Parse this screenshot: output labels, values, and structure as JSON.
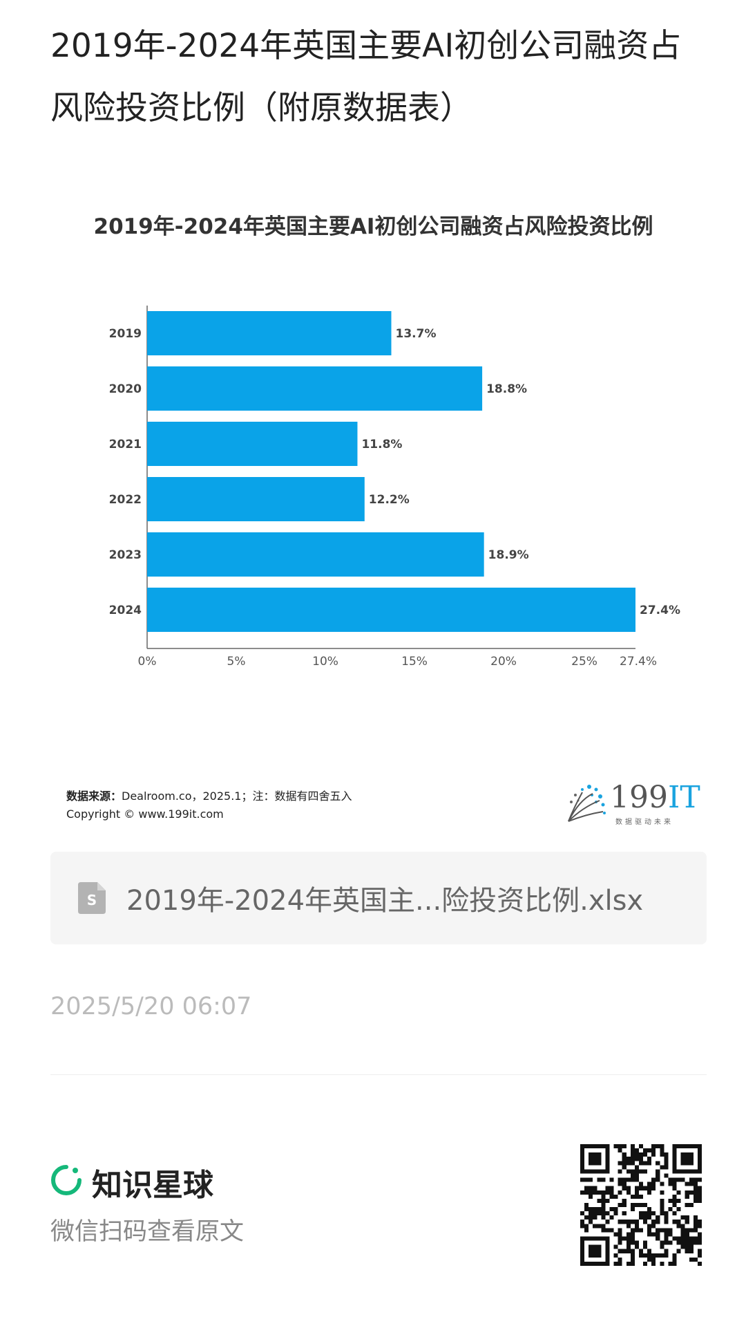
{
  "page": {
    "title": "2019年-2024年英国主要AI初创公司融资占风险投资比例（附原数据表）"
  },
  "chart_data": {
    "type": "bar",
    "orientation": "horizontal",
    "title": "2019年-2024年英国主要AI初创公司融资占风险投资比例",
    "categories": [
      "2019",
      "2020",
      "2021",
      "2022",
      "2023",
      "2024"
    ],
    "values": [
      13.7,
      18.8,
      11.8,
      12.2,
      18.9,
      27.4
    ],
    "value_labels": [
      "13.7%",
      "18.8%",
      "11.8%",
      "12.2%",
      "18.9%",
      "27.4%"
    ],
    "x_ticks": [
      "0%",
      "5%",
      "10%",
      "15%",
      "20%",
      "25%",
      "27.4%"
    ],
    "x_tick_values": [
      0,
      5,
      10,
      15,
      20,
      25,
      27.4
    ],
    "xlim": [
      0,
      27.4
    ],
    "xlabel": "",
    "ylabel": "",
    "bar_color": "#0aa3e8",
    "grid": false
  },
  "source": {
    "label": "数据来源：",
    "text": "Dealroom.co，2025.1；注：数据有四舍五入",
    "copyright": "Copyright © www.199it.com"
  },
  "logo": {
    "number": "199",
    "letters": "IT",
    "tagline": "数据驱动未来"
  },
  "attachment": {
    "icon": "spreadsheet-file-icon",
    "file_name": "2019年-2024年英国主...险投资比例.xlsx"
  },
  "timestamp": "2025/5/20 06:07",
  "footer": {
    "brand_icon": "zsxq-ring-icon",
    "brand_name": "知识星球",
    "brand_color": "#15b87a",
    "subtitle": "微信扫码查看原文",
    "qr_icon": "qr-code-icon"
  }
}
